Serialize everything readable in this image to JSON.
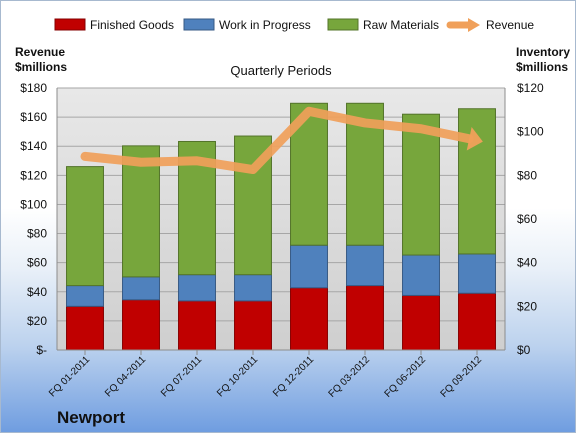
{
  "chart_data": {
    "type": "bar",
    "subtitle": "Quarterly Periods",
    "caption": "Newport",
    "ylabel_left": "Revenue $millions",
    "ylabel_right": "Inventory $millions",
    "ylim_left": [
      0,
      180
    ],
    "ylim_right": [
      0,
      120
    ],
    "y_ticks_left": [
      "$-",
      "$20",
      "$40",
      "$60",
      "$80",
      "$100",
      "$120",
      "$140",
      "$160",
      "$180"
    ],
    "y_ticks_right": [
      "$0",
      "$20",
      "$40",
      "$60",
      "$80",
      "$100",
      "$120"
    ],
    "categories": [
      "FQ 01-2011",
      "FQ 04-2011",
      "FQ 07-2011",
      "FQ 10-2011",
      "FQ 12-2011",
      "FQ 03-2012",
      "FQ 06-2012",
      "FQ 09-2012"
    ],
    "grid": true,
    "legend_position": "top",
    "series": [
      {
        "name": "Finished Goods",
        "type": "stacked-bar",
        "axis": "right",
        "color": "#c00000",
        "values": [
          20,
          23,
          22.5,
          22.5,
          28.5,
          29.5,
          25,
          26
        ]
      },
      {
        "name": "Work in Progress",
        "type": "stacked-bar",
        "axis": "right",
        "color": "#4f81bd",
        "values": [
          9.5,
          10.5,
          12,
          12,
          19.5,
          18.5,
          18.5,
          18
        ]
      },
      {
        "name": "Raw Materials",
        "type": "stacked-bar",
        "axis": "right",
        "color": "#77a63c",
        "values": [
          54.5,
          60,
          61,
          63.5,
          65,
          65,
          64.5,
          66.5
        ]
      },
      {
        "name": "Revenue",
        "type": "line",
        "axis": "left",
        "color": "#f0a05a",
        "values": [
          133,
          129,
          130,
          124,
          164,
          156,
          152,
          144
        ]
      }
    ]
  }
}
